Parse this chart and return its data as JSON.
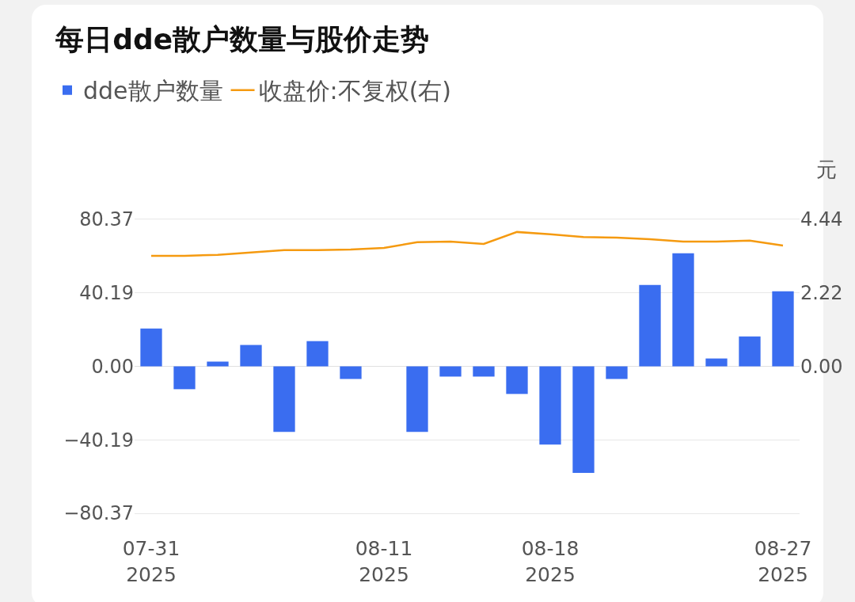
{
  "chart_data": {
    "type": "bar",
    "title": "每日dde散户数量与股价走势",
    "y2label": "元",
    "categories": [
      "07-31\n2025",
      null,
      null,
      null,
      null,
      null,
      null,
      "08-11\n2025",
      null,
      null,
      null,
      null,
      "08-18\n2025",
      null,
      null,
      null,
      null,
      null,
      null,
      "08-27\n2025"
    ],
    "series": [
      {
        "name": "dde散户数量",
        "color": "#3a6df0",
        "values": [
          20.7,
          -12.5,
          2.6,
          11.7,
          -35.9,
          13.8,
          -6.9,
          0,
          -35.9,
          -5.6,
          -5.6,
          -15.1,
          -42.8,
          -58.3,
          -6.9,
          44.5,
          61.8,
          4.3,
          16.4,
          41.0
        ]
      },
      {
        "name": "收盘价:不复权(右)",
        "type": "line",
        "axis": "y2",
        "color": "#f59a10",
        "values": [
          3.34,
          3.34,
          3.37,
          3.44,
          3.51,
          3.51,
          3.53,
          3.58,
          3.75,
          3.77,
          3.7,
          4.06,
          3.99,
          3.91,
          3.89,
          3.84,
          3.77,
          3.77,
          3.8,
          3.65
        ]
      }
    ],
    "ylim": [
      -80.37,
      80.37
    ],
    "yticks": [
      {
        "value": -80.37,
        "label": "−80.37"
      },
      {
        "value": -40.19,
        "label": "−40.19"
      },
      "0.00",
      40.19,
      80.37
    ],
    "y2lim": [
      -4.44,
      4.44
    ],
    "y2ticks": [
      {
        "value": -4.44,
        "label": null
      },
      {
        "value": -2.22,
        "label": null
      },
      "0.00",
      2.22,
      4.44
    ],
    "grid": "y",
    "legend": "top left",
    "marker": "none",
    "line_style": "solid"
  }
}
